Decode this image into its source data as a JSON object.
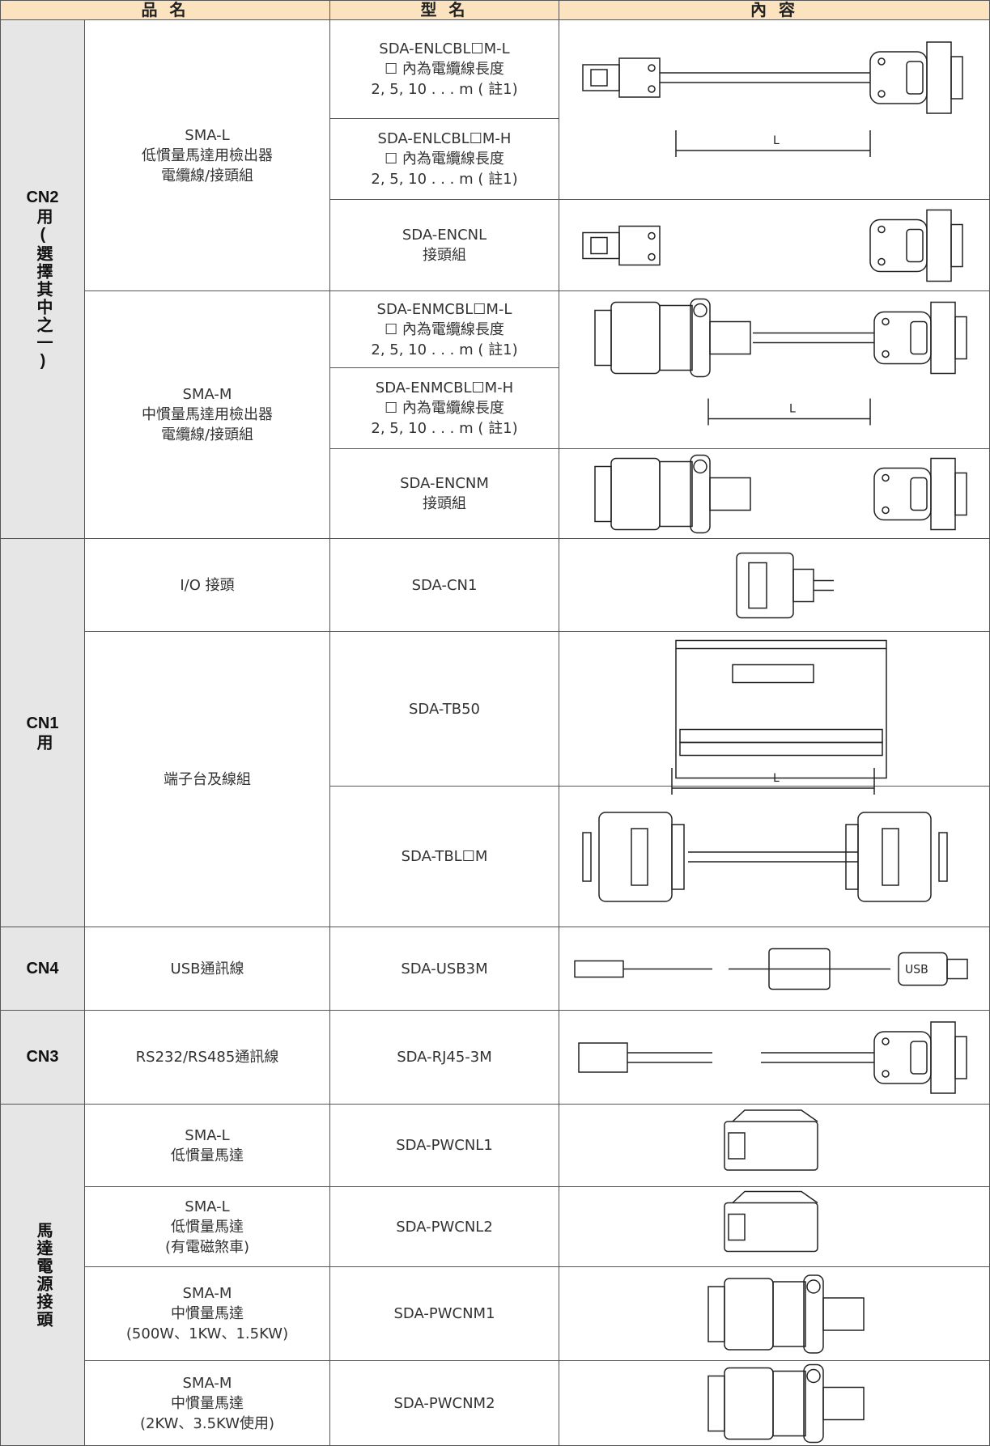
{
  "header": [
    "品 名",
    "型 名",
    "內 容"
  ],
  "groups": [
    {
      "label": [
        "CN2",
        "用(選擇其中之一)"
      ],
      "items": [
        {
          "name": [
            "SMA-L",
            "低慣量馬達用檢出器",
            "電纜線/接頭組"
          ],
          "models": [
            [
              "SDA-ENLCBL☐M-L",
              "☐ 內為電纜線長度",
              "2, 5, 10 . . . m ( 註1)"
            ],
            [
              "SDA-ENLCBL☐M-H",
              "☐ 內為電纜線長度",
              "2, 5, 10 . . . m ( 註1)"
            ],
            [
              "SDA-ENCNL",
              "接頭組"
            ]
          ]
        },
        {
          "name": [
            "SMA-M",
            "中慣量馬達用檢出器",
            "電纜線/接頭組"
          ],
          "models": [
            [
              "SDA-ENMCBL☐M-L",
              "☐ 內為電纜線長度",
              "2, 5, 10 . . . m ( 註1)"
            ],
            [
              "SDA-ENMCBL☐M-H",
              "☐ 內為電纜線長度",
              "2, 5, 10 . . . m ( 註1)"
            ],
            [
              "SDA-ENCNM",
              "接頭組"
            ]
          ]
        }
      ]
    },
    {
      "label": [
        "CN1",
        "用"
      ],
      "items": [
        {
          "name": [
            "I/O 接頭"
          ],
          "models": [
            [
              "SDA-CN1"
            ]
          ]
        },
        {
          "name": [
            "端子台及線組"
          ],
          "models": [
            [
              "SDA-TB50"
            ],
            [
              "SDA-TBL☐M"
            ]
          ]
        }
      ]
    },
    {
      "label": [
        "CN4"
      ],
      "items": [
        {
          "name": [
            "USB通訊線"
          ],
          "models": [
            [
              "SDA-USB3M"
            ]
          ]
        }
      ]
    },
    {
      "label": [
        "CN3"
      ],
      "items": [
        {
          "name": [
            "RS232/RS485通訊線"
          ],
          "models": [
            [
              "SDA-RJ45-3M"
            ]
          ]
        }
      ]
    },
    {
      "label": [
        "馬達電源接頭"
      ],
      "items": [
        {
          "name": [
            "SMA-L",
            "低慣量馬達"
          ],
          "models": [
            [
              "SDA-PWCNL1"
            ]
          ]
        },
        {
          "name": [
            "SMA-L",
            "低慣量馬達",
            "(有電磁煞車)"
          ],
          "models": [
            [
              "SDA-PWCNL2"
            ]
          ]
        },
        {
          "name": [
            "SMA-M",
            "中慣量馬達",
            "(500W、1KW、1.5KW)"
          ],
          "models": [
            [
              "SDA-PWCNM1"
            ]
          ]
        },
        {
          "name": [
            "SMA-M",
            "中慣量馬達",
            "(2KW、3.5KW使用)"
          ],
          "models": [
            [
              "SDA-PWCNM2"
            ]
          ]
        }
      ]
    }
  ],
  "figure_text": {
    "length": "L",
    "usb": "USB"
  }
}
